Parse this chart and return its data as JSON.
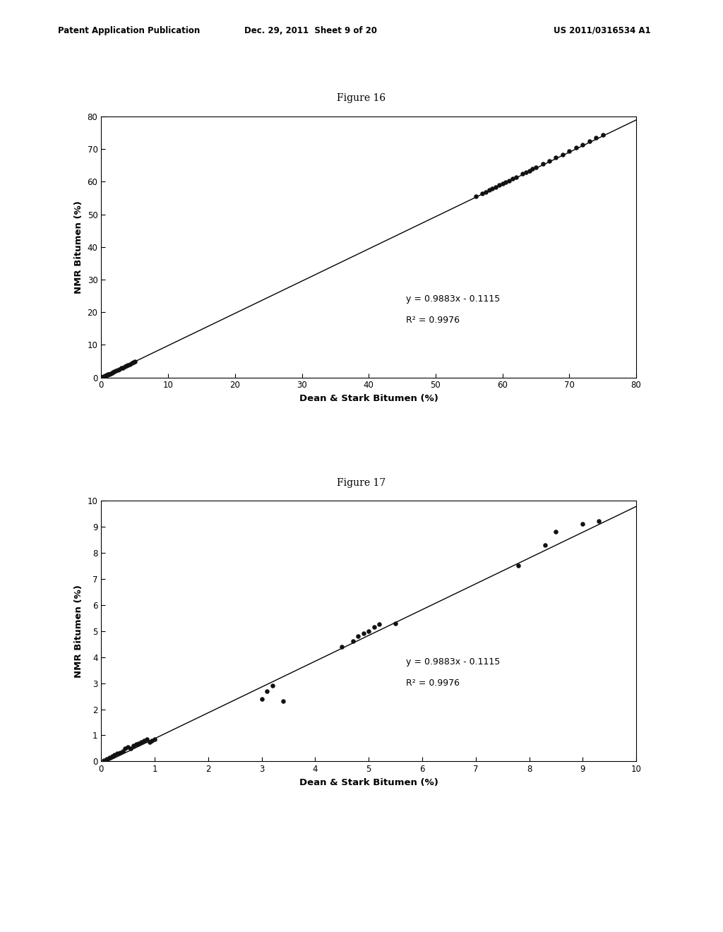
{
  "header_left": "Patent Application Publication",
  "header_center": "Dec. 29, 2011  Sheet 9 of 20",
  "header_right": "US 2011/0316534 A1",
  "fig16_title": "Figure 16",
  "fig17_title": "Figure 17",
  "equation": "y = 0.9883x - 0.1115",
  "r_squared": "R² = 0.9976",
  "xlabel": "Dean & Stark Bitumen (%)",
  "ylabel": "NMR Bitumen (%)",
  "slope": 0.9883,
  "intercept": -0.1115,
  "fig16": {
    "xlim": [
      0,
      80
    ],
    "ylim": [
      0,
      80
    ],
    "xticks": [
      0,
      10,
      20,
      30,
      40,
      50,
      60,
      70,
      80
    ],
    "yticks": [
      0,
      10,
      20,
      30,
      40,
      50,
      60,
      70,
      80
    ],
    "scatter_x": [
      0.1,
      0.2,
      0.3,
      0.4,
      0.5,
      0.6,
      0.7,
      0.8,
      0.9,
      1.0,
      1.1,
      1.2,
      1.4,
      1.6,
      1.8,
      2.0,
      2.2,
      2.5,
      2.7,
      3.0,
      3.2,
      3.5,
      3.8,
      4.0,
      4.3,
      4.6,
      4.8,
      5.0,
      56.0,
      57.0,
      57.5,
      58.0,
      58.5,
      59.0,
      59.5,
      60.0,
      60.5,
      61.0,
      61.5,
      62.0,
      63.0,
      63.5,
      64.0,
      64.5,
      65.0,
      66.0,
      67.0,
      68.0,
      69.0,
      70.0,
      71.0,
      72.0,
      73.0,
      74.0,
      75.0
    ],
    "scatter_y": [
      0.05,
      0.1,
      0.2,
      0.3,
      0.4,
      0.5,
      0.6,
      0.7,
      0.8,
      0.9,
      1.0,
      1.1,
      1.3,
      1.5,
      1.7,
      1.9,
      2.1,
      2.4,
      2.6,
      2.9,
      3.0,
      3.3,
      3.6,
      3.8,
      4.1,
      4.4,
      4.6,
      4.8,
      55.5,
      56.4,
      56.9,
      57.4,
      57.9,
      58.4,
      58.9,
      59.4,
      59.9,
      60.4,
      60.9,
      61.4,
      62.4,
      62.9,
      63.4,
      63.9,
      64.4,
      65.4,
      66.4,
      67.4,
      68.4,
      69.4,
      70.4,
      71.4,
      72.4,
      73.4,
      74.4
    ]
  },
  "fig17": {
    "xlim": [
      0,
      10
    ],
    "ylim": [
      0,
      10
    ],
    "xticks": [
      0,
      1,
      2,
      3,
      4,
      5,
      6,
      7,
      8,
      9,
      10
    ],
    "yticks": [
      0,
      1,
      2,
      3,
      4,
      5,
      6,
      7,
      8,
      9,
      10
    ],
    "scatter_x": [
      0.05,
      0.1,
      0.15,
      0.2,
      0.25,
      0.3,
      0.35,
      0.4,
      0.45,
      0.5,
      0.55,
      0.6,
      0.65,
      0.7,
      0.75,
      0.8,
      0.85,
      0.9,
      0.95,
      1.0,
      3.0,
      3.1,
      3.2,
      3.4,
      4.5,
      4.7,
      4.8,
      4.9,
      5.0,
      5.1,
      5.2,
      5.5,
      7.8,
      8.3,
      8.5,
      9.0,
      9.3
    ],
    "scatter_y": [
      0.05,
      0.1,
      0.15,
      0.2,
      0.25,
      0.3,
      0.35,
      0.4,
      0.5,
      0.55,
      0.5,
      0.6,
      0.65,
      0.7,
      0.75,
      0.8,
      0.85,
      0.75,
      0.8,
      0.85,
      2.4,
      2.7,
      2.9,
      2.3,
      4.4,
      4.6,
      4.8,
      4.9,
      5.0,
      5.15,
      5.25,
      5.3,
      7.5,
      8.3,
      8.8,
      9.1,
      9.2
    ]
  },
  "background_color": "#ffffff",
  "scatter_color": "#111111",
  "line_color": "#000000",
  "ann_eq_x16": 0.57,
  "ann_eq_y16": 0.3,
  "ann_r2_x16": 0.57,
  "ann_r2_y16": 0.22,
  "ann_eq_x17": 0.57,
  "ann_eq_y17": 0.38,
  "ann_r2_x17": 0.57,
  "ann_r2_y17": 0.3
}
